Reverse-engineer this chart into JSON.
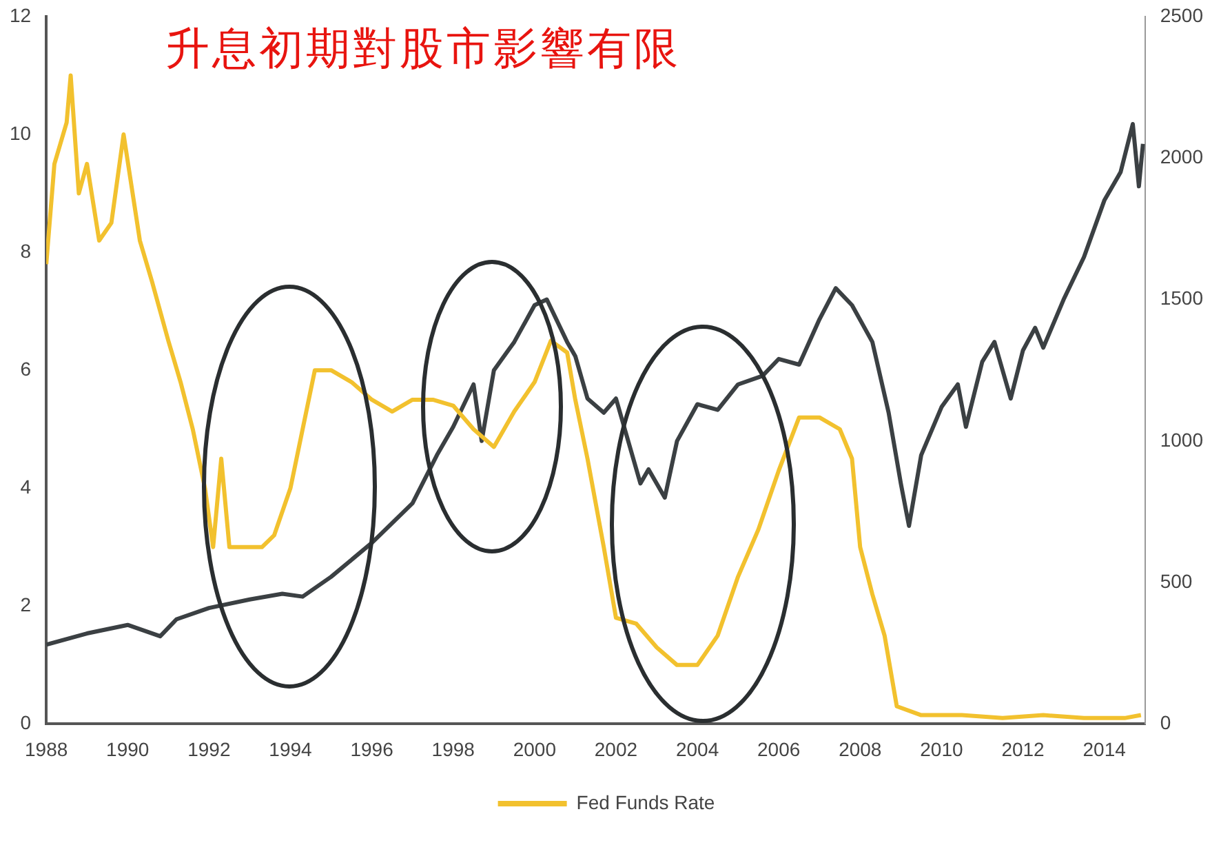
{
  "chart_data": {
    "type": "line",
    "title": "升息初期對股市影響有限",
    "series": [
      {
        "name": "Fed Funds Rate",
        "color": "#f2c12e",
        "x": [
          1988.0,
          1988.2,
          1988.5,
          1988.6,
          1988.8,
          1989.0,
          1989.3,
          1989.6,
          1989.9,
          1990.3,
          1990.6,
          1991.0,
          1991.3,
          1991.6,
          1991.9,
          1992.1,
          1992.3,
          1992.5,
          1992.9,
          1993.3,
          1993.6,
          1994.0,
          1994.3,
          1994.6,
          1995.0,
          1995.5,
          1996.0,
          1996.5,
          1997.0,
          1997.5,
          1998.0,
          1998.5,
          1999.0,
          1999.5,
          2000.0,
          2000.4,
          2000.8,
          2001.0,
          2001.3,
          2001.7,
          2002.0,
          2002.5,
          2003.0,
          2003.5,
          2004.0,
          2004.5,
          2005.0,
          2005.5,
          2006.0,
          2006.5,
          2007.0,
          2007.5,
          2007.8,
          2008.0,
          2008.3,
          2008.6,
          2008.9,
          2009.5,
          2010.5,
          2011.5,
          2012.5,
          2013.5,
          2014.5,
          2014.9
        ],
        "values": [
          7.8,
          9.5,
          10.2,
          11.0,
          9.0,
          9.5,
          8.2,
          8.5,
          10.0,
          8.2,
          7.5,
          6.5,
          5.8,
          5.0,
          4.0,
          3.0,
          4.5,
          3.0,
          3.0,
          3.0,
          3.2,
          4.0,
          5.0,
          6.0,
          6.0,
          5.8,
          5.5,
          5.3,
          5.5,
          5.5,
          5.4,
          5.0,
          4.7,
          5.3,
          5.8,
          6.5,
          6.3,
          5.5,
          4.5,
          3.0,
          1.8,
          1.7,
          1.3,
          1.0,
          1.0,
          1.5,
          2.5,
          3.3,
          4.3,
          5.2,
          5.2,
          5.0,
          4.5,
          3.0,
          2.2,
          1.5,
          0.3,
          0.15,
          0.15,
          0.1,
          0.15,
          0.1,
          0.1,
          0.15
        ]
      },
      {
        "color": "#3b4043",
        "axis": "y2",
        "x": [
          1988.0,
          1989.0,
          1990.0,
          1990.8,
          1991.2,
          1992.0,
          1993.0,
          1993.8,
          1994.3,
          1995.0,
          1996.0,
          1997.0,
          1997.6,
          1998.0,
          1998.5,
          1998.7,
          1999.0,
          1999.5,
          2000.0,
          2000.3,
          2000.8,
          2001.0,
          2001.3,
          2001.7,
          2002.0,
          2002.6,
          2002.8,
          2003.2,
          2003.5,
          2004.0,
          2004.5,
          2005.0,
          2005.6,
          2006.0,
          2006.5,
          2007.0,
          2007.4,
          2007.8,
          2008.3,
          2008.7,
          2009.0,
          2009.2,
          2009.5,
          2010.0,
          2010.4,
          2010.6,
          2011.0,
          2011.3,
          2011.7,
          2012.0,
          2012.3,
          2012.5,
          2013.0,
          2013.5,
          2014.0,
          2014.4,
          2014.7,
          2014.85,
          2014.95
        ],
        "values": [
          280,
          320,
          350,
          310,
          370,
          410,
          440,
          460,
          450,
          520,
          640,
          780,
          950,
          1050,
          1200,
          1000,
          1250,
          1350,
          1480,
          1500,
          1350,
          1300,
          1150,
          1100,
          1150,
          850,
          900,
          800,
          1000,
          1130,
          1110,
          1200,
          1230,
          1290,
          1270,
          1430,
          1540,
          1480,
          1350,
          1100,
          850,
          700,
          950,
          1120,
          1200,
          1050,
          1280,
          1350,
          1150,
          1320,
          1400,
          1330,
          1500,
          1650,
          1850,
          1950,
          2120,
          1900,
          2050
        ]
      }
    ],
    "xlim": [
      1988,
      2015
    ],
    "xticks": [
      1988,
      1990,
      1992,
      1994,
      1996,
      1998,
      2000,
      2002,
      2004,
      2006,
      2008,
      2010,
      2012,
      2014
    ],
    "ylim": [
      0,
      12
    ],
    "yticks": [
      0,
      2,
      4,
      6,
      8,
      10,
      12
    ],
    "y2lim": [
      0,
      2500
    ],
    "y2ticks": [
      0,
      500,
      1000,
      1500,
      2000,
      2500
    ],
    "grid": false,
    "legend": "bottom",
    "marker": "none",
    "line_style": "solid"
  }
}
